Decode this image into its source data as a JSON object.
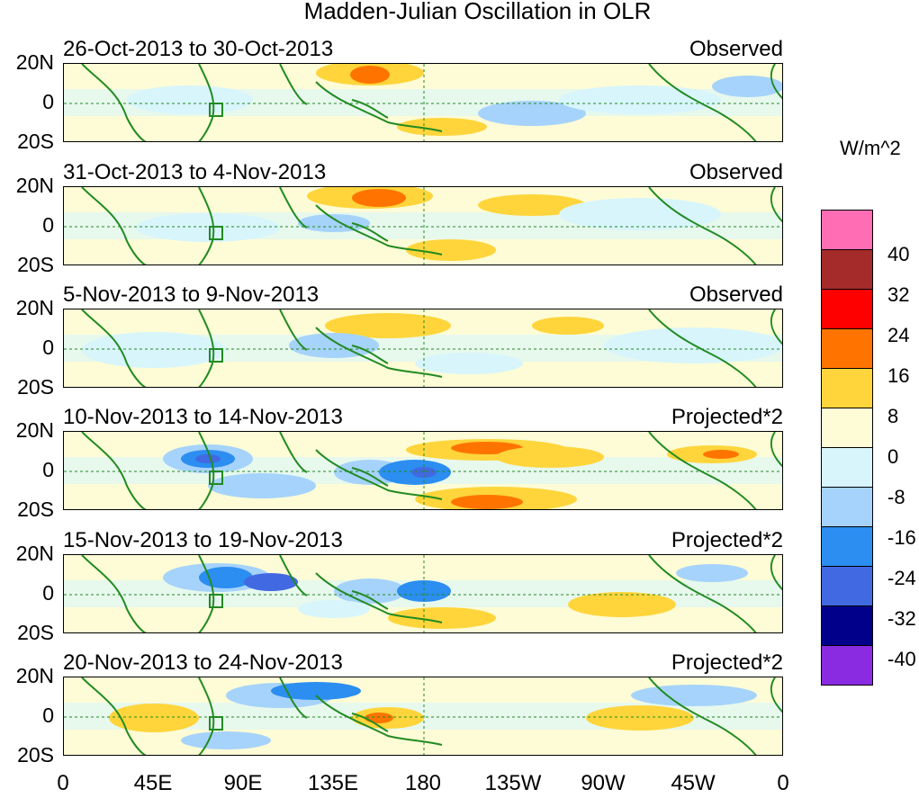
{
  "title": "Madden-Julian Oscillation in OLR",
  "unit": "W/m^2",
  "colorbar": {
    "colors": [
      "#ff6eb4",
      "#a52a2a",
      "#ff0000",
      "#ff7400",
      "#ffd53b",
      "#fdfcd6",
      "#d8f5fc",
      "#a6d3fb",
      "#2b8ef0",
      "#4169e1",
      "#00008b",
      "#8a2be2"
    ],
    "labels": [
      "40",
      "32",
      "24",
      "16",
      "8",
      "0",
      "-8",
      "-16",
      "-24",
      "-32",
      "-40"
    ]
  },
  "y_ticks": [
    "20N",
    "0",
    "20S"
  ],
  "x_ticks": [
    "0",
    "45E",
    "90E",
    "135E",
    "180",
    "135W",
    "90W",
    "45W",
    "0"
  ],
  "panels": [
    {
      "dates": "26-Oct-2013 to 30-Oct-2013",
      "type": "Observed"
    },
    {
      "dates": "31-Oct-2013 to 4-Nov-2013",
      "type": "Observed"
    },
    {
      "dates": "5-Nov-2013 to 9-Nov-2013",
      "type": "Observed"
    },
    {
      "dates": "10-Nov-2013 to 14-Nov-2013",
      "type": "Projected*2"
    },
    {
      "dates": "15-Nov-2013 to 19-Nov-2013",
      "type": "Projected*2"
    },
    {
      "dates": "20-Nov-2013 to 24-Nov-2013",
      "type": "Projected*2"
    }
  ]
}
